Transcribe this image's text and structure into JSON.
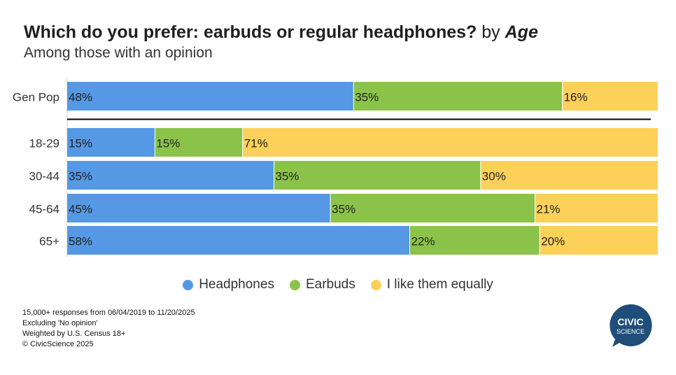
{
  "title": {
    "main": "Which do you prefer: earbuds or regular headphones?",
    "by": "by",
    "dimension": "Age"
  },
  "subtitle": "Among those with an opinion",
  "colors": {
    "headphones": "#5598e3",
    "earbuds": "#8bc34a",
    "equally": "#fdd05a",
    "divider": "#000000"
  },
  "chart_data": {
    "type": "bar",
    "orientation": "horizontal",
    "stacked": true,
    "categories": [
      "Gen Pop",
      "18-29",
      "30-44",
      "45-64",
      "65+"
    ],
    "series": [
      {
        "name": "Headphones",
        "values": [
          48,
          15,
          35,
          45,
          58
        ]
      },
      {
        "name": "Earbuds",
        "values": [
          35,
          15,
          35,
          35,
          22
        ]
      },
      {
        "name": "I like them equally",
        "values": [
          16,
          71,
          30,
          21,
          20
        ]
      }
    ],
    "value_suffix": "%",
    "legend_position": "bottom"
  },
  "legend": [
    {
      "label": "Headphones",
      "color": "#5598e3"
    },
    {
      "label": "Earbuds",
      "color": "#8bc34a"
    },
    {
      "label": "I like them equally",
      "color": "#fdd05a"
    }
  ],
  "footnotes": [
    "15,000+ responses from 06/04/2019 to 11/20/2025",
    "Excluding 'No opinion'",
    "Weighted by U.S. Census 18+",
    "© CivicScience 2025"
  ],
  "logo": {
    "line1": "CIVIC",
    "line2": "SCIENCE"
  }
}
